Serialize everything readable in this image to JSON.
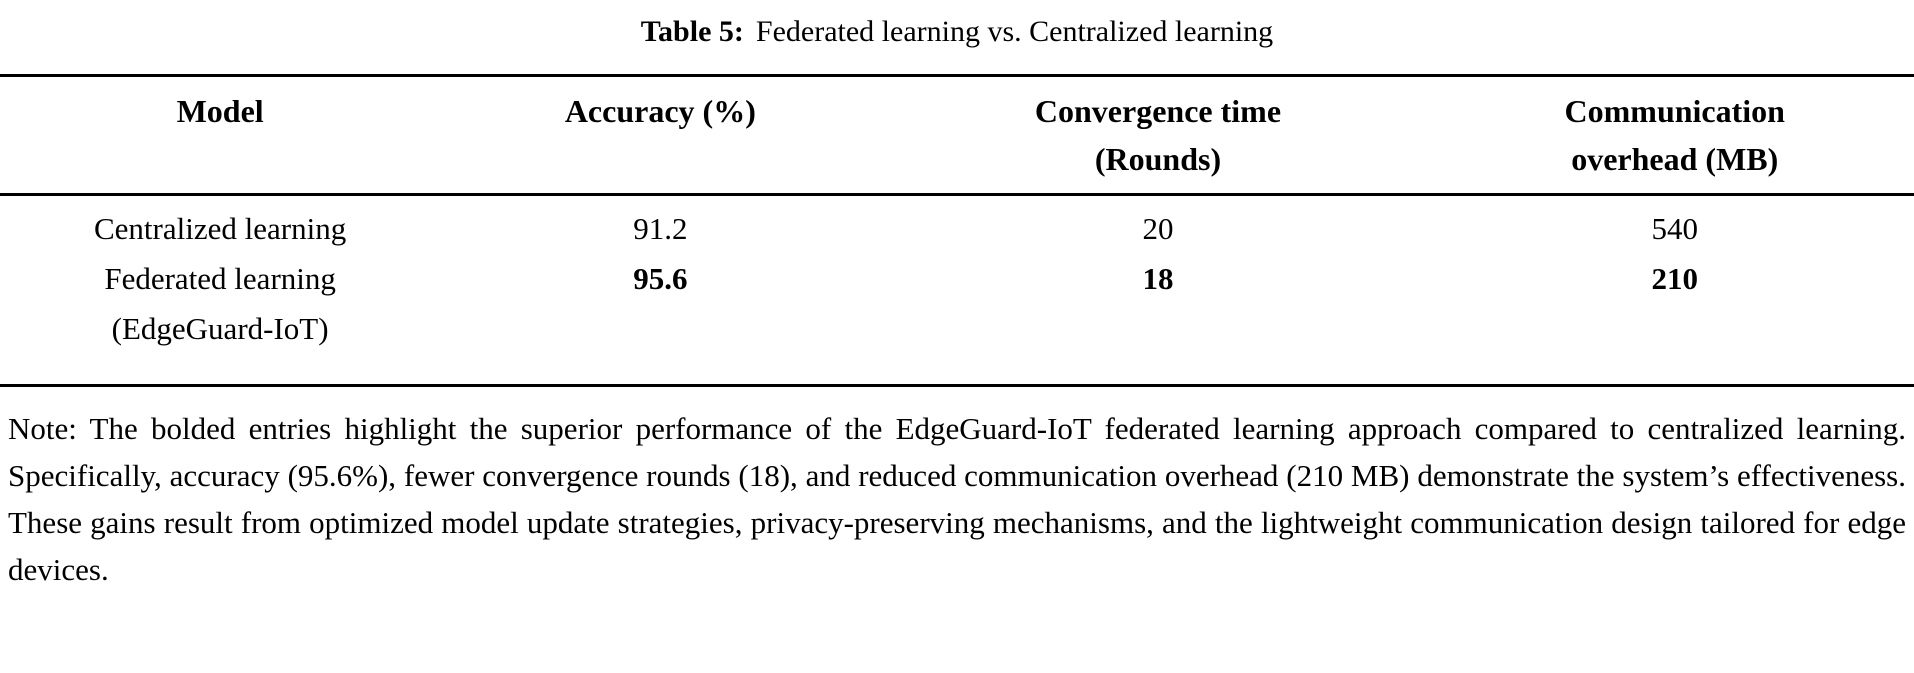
{
  "caption": {
    "label": "Table 5:",
    "title": "Federated learning vs. Centralized learning"
  },
  "table": {
    "headers": [
      {
        "line1": "Model",
        "line2": ""
      },
      {
        "line1": "Accuracy (%)",
        "line2": ""
      },
      {
        "line1": "Convergence time",
        "line2": "(Rounds)"
      },
      {
        "line1": "Communication",
        "line2": "overhead (MB)"
      }
    ],
    "rows": [
      {
        "model_line1": "Centralized learning",
        "model_line2": "",
        "accuracy": "91.2",
        "convergence": "20",
        "communication": "540",
        "bold_values": false
      },
      {
        "model_line1": "Federated learning",
        "model_line2": "(EdgeGuard-IoT)",
        "accuracy": "95.6",
        "convergence": "18",
        "communication": "210",
        "bold_values": true
      }
    ]
  },
  "note": {
    "text": "Note: The bolded entries highlight the superior performance of the EdgeGuard-IoT federated learning approach compared to centralized learning. Specifically, accuracy (95.6%), fewer convergence rounds (18), and reduced communication overhead (210 MB) demonstrate the system’s effectiveness. These gains result from optimized model update strategies, privacy-preserving mechanisms, and the lightweight communication design tailored for edge devices."
  },
  "chart_data": {
    "type": "table",
    "title": "Table 5: Federated learning vs. Centralized learning",
    "columns": [
      "Model",
      "Accuracy (%)",
      "Convergence time (Rounds)",
      "Communication overhead (MB)"
    ],
    "rows": [
      [
        "Centralized learning",
        91.2,
        20,
        540
      ],
      [
        "Federated learning (EdgeGuard-IoT)",
        95.6,
        18,
        210
      ]
    ]
  }
}
